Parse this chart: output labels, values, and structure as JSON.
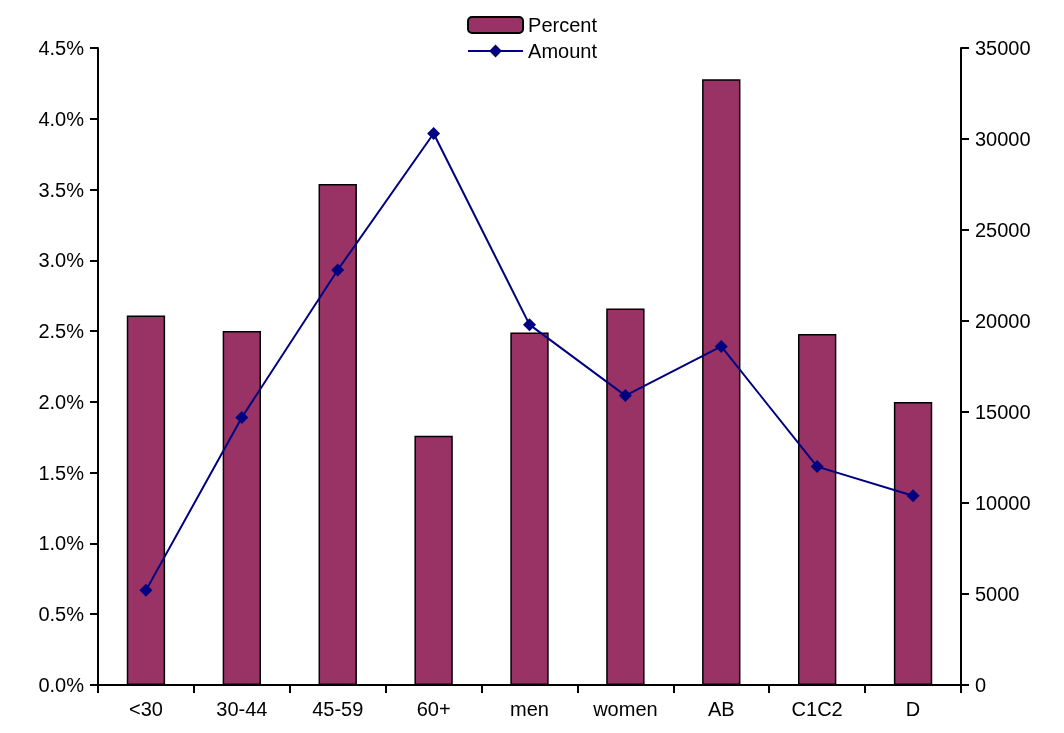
{
  "chart_data": {
    "type": "bar",
    "categories": [
      "<30",
      "30-44",
      "45-59",
      "60+",
      "men",
      "women",
      "AB",
      "C1C2",
      "D"
    ],
    "series": [
      {
        "name": "Percent",
        "color": "#993366",
        "values": [
          2.61,
          2.5,
          3.54,
          1.76,
          2.49,
          2.66,
          4.28,
          2.48,
          2.0
        ]
      },
      {
        "name": "Amount",
        "type": "line",
        "axis": "y2",
        "color": "#000080",
        "marker": "diamond",
        "values": [
          5200,
          14700,
          22800,
          30300,
          19800,
          15900,
          18600,
          12000,
          10400
        ]
      }
    ],
    "ylim": [
      0,
      4.5
    ],
    "yticks": [
      {
        "value": 0,
        "label": "0.0%"
      },
      {
        "value": 0.5,
        "label": "0.5%"
      },
      {
        "value": 1,
        "label": "1.0%"
      },
      {
        "value": 1.5,
        "label": "1.5%"
      },
      {
        "value": 2,
        "label": "2.0%"
      },
      {
        "value": 2.5,
        "label": "2.5%"
      },
      {
        "value": 3,
        "label": "3.0%"
      },
      {
        "value": 3.5,
        "label": "3.5%"
      },
      {
        "value": 4,
        "label": "4.0%"
      },
      {
        "value": 4.5,
        "label": "4.5%"
      }
    ],
    "y2lim": [
      0,
      35000
    ],
    "y2ticks": [
      0,
      5000,
      10000,
      15000,
      20000,
      25000,
      30000,
      35000
    ],
    "grid": false,
    "legend": "top"
  }
}
